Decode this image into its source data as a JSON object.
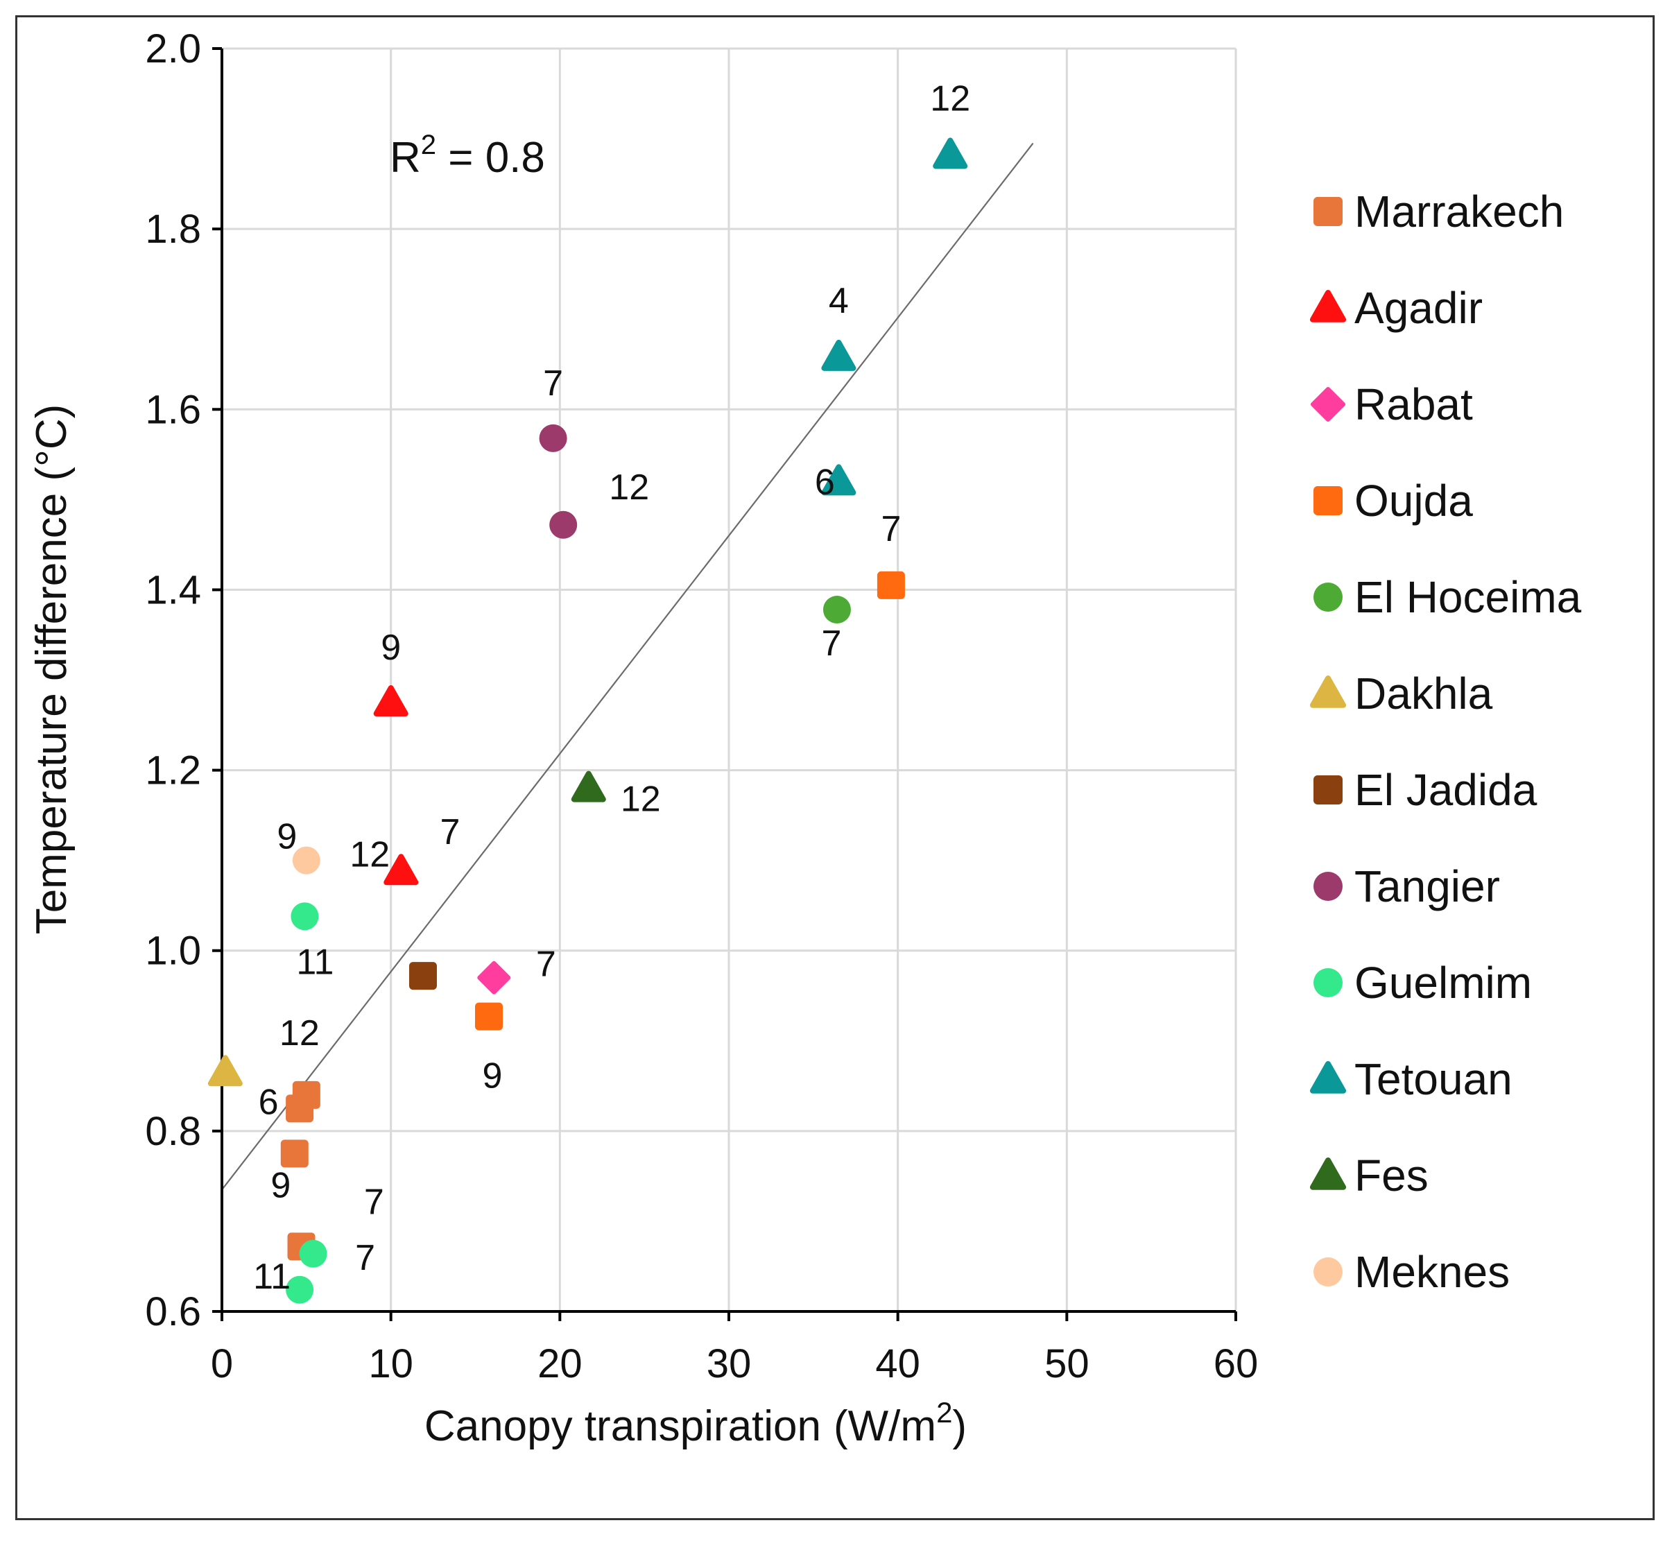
{
  "chart_data": {
    "type": "scatter",
    "title": "",
    "xlabel": "Canopy transpiration",
    "xlabel_unit": "(W/m",
    "xlabel_unit_sup": "2",
    "xlabel_unit_close": ")",
    "ylabel": "Temperature difference (°C)",
    "xlim": [
      0,
      60
    ],
    "ylim": [
      0.6,
      2.0
    ],
    "xticks": [
      0,
      10,
      20,
      30,
      40,
      50,
      60
    ],
    "yticks": [
      0.6,
      0.8,
      1.0,
      1.2,
      1.4,
      1.6,
      1.8,
      2.0
    ],
    "xtick_labels": [
      "0",
      "10",
      "20",
      "30",
      "40",
      "50",
      "60"
    ],
    "ytick_labels": [
      "0.6",
      "0.8",
      "1.0",
      "1.2",
      "1.4",
      "1.6",
      "1.8",
      "2.0"
    ],
    "grid": true,
    "legend_position": "right",
    "annotation": {
      "text": "R",
      "sup": "2",
      "rest": " = 0.8"
    },
    "trendline": {
      "x": [
        0,
        48
      ],
      "y": [
        0.735,
        1.895
      ]
    },
    "series": [
      {
        "name": "Marrakech",
        "marker": "square",
        "color": "#E8753A",
        "points": [
          {
            "x": 4.6,
            "y": 0.825,
            "label": "6"
          },
          {
            "x": 5.0,
            "y": 0.84,
            "label": "12"
          },
          {
            "x": 4.3,
            "y": 0.775,
            "label": "9"
          },
          {
            "x": 4.7,
            "y": 0.672,
            "label": ""
          }
        ]
      },
      {
        "name": "Agadir",
        "marker": "triangle",
        "color": "#FF1010",
        "points": [
          {
            "x": 10.0,
            "y": 1.275,
            "label": "9"
          },
          {
            "x": 10.6,
            "y": 1.088,
            "label": "12"
          }
        ]
      },
      {
        "name": "Rabat",
        "marker": "diamond",
        "color": "#FF3D9E",
        "points": [
          {
            "x": 16.1,
            "y": 0.97,
            "label": "7"
          }
        ]
      },
      {
        "name": "Oujda",
        "marker": "square",
        "color": "#FF6A10",
        "points": [
          {
            "x": 15.8,
            "y": 0.927,
            "label": "9"
          },
          {
            "x": 39.6,
            "y": 1.405,
            "label": "7"
          }
        ]
      },
      {
        "name": "El Hoceima",
        "marker": "circle",
        "color": "#4DAA35",
        "points": [
          {
            "x": 36.4,
            "y": 1.378,
            "label": "7"
          }
        ]
      },
      {
        "name": "Dakhla",
        "marker": "triangle",
        "color": "#DDB542",
        "points": [
          {
            "x": 0.2,
            "y": 0.865,
            "label": ""
          }
        ]
      },
      {
        "name": "El Jadida",
        "marker": "square",
        "color": "#8B4010",
        "points": [
          {
            "x": 11.9,
            "y": 0.972,
            "label": ""
          }
        ]
      },
      {
        "name": "Tangier",
        "marker": "circle",
        "color": "#9B3A6B",
        "points": [
          {
            "x": 19.6,
            "y": 1.568,
            "label": "7"
          },
          {
            "x": 20.2,
            "y": 1.472,
            "label": "12"
          }
        ]
      },
      {
        "name": "Guelmim",
        "marker": "circle",
        "color": "#34E88C",
        "points": [
          {
            "x": 4.9,
            "y": 1.038,
            "label": "11"
          },
          {
            "x": 5.4,
            "y": 0.664,
            "label": "7"
          },
          {
            "x": 4.6,
            "y": 0.624,
            "label": "11"
          }
        ]
      },
      {
        "name": "Tetouan",
        "marker": "triangle",
        "color": "#0A9899",
        "points": [
          {
            "x": 43.1,
            "y": 1.882,
            "label": "12"
          },
          {
            "x": 36.5,
            "y": 1.658,
            "label": "4"
          },
          {
            "x": 36.5,
            "y": 1.52,
            "label": "6"
          }
        ]
      },
      {
        "name": "Fes",
        "marker": "triangle",
        "color": "#2F6A1D",
        "points": [
          {
            "x": 21.7,
            "y": 1.18,
            "label": "12"
          }
        ]
      },
      {
        "name": "Meknes",
        "marker": "circle",
        "color": "#FFC9A0",
        "points": [
          {
            "x": 5.0,
            "y": 1.1,
            "label": "9"
          }
        ]
      }
    ],
    "free_labels": [
      {
        "text": "7",
        "x": 13.5,
        "y": 1.132
      },
      {
        "text": "7",
        "x": 9.0,
        "y": 0.722
      }
    ]
  }
}
